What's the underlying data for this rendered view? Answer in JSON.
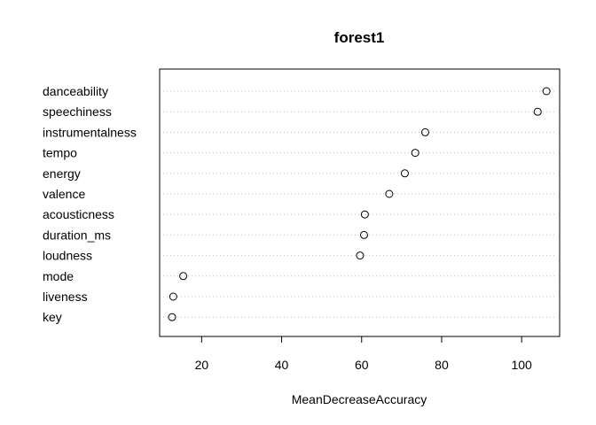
{
  "chart_data": {
    "type": "scatter",
    "title": "forest1",
    "xlabel": "MeanDecreaseAccuracy",
    "ylabel": "",
    "xlim": [
      9.5,
      109.5
    ],
    "xticks": [
      20,
      40,
      60,
      80,
      100
    ],
    "grid": "dotted horizontal guide lines per category",
    "categories": [
      "danceability",
      "speechiness",
      "instrumentalness",
      "tempo",
      "energy",
      "valence",
      "acousticness",
      "duration_ms",
      "loudness",
      "mode",
      "liveness",
      "key"
    ],
    "values": [
      106.2,
      104.0,
      75.9,
      73.4,
      70.8,
      66.9,
      60.8,
      60.6,
      59.6,
      15.4,
      12.9,
      12.6
    ]
  }
}
